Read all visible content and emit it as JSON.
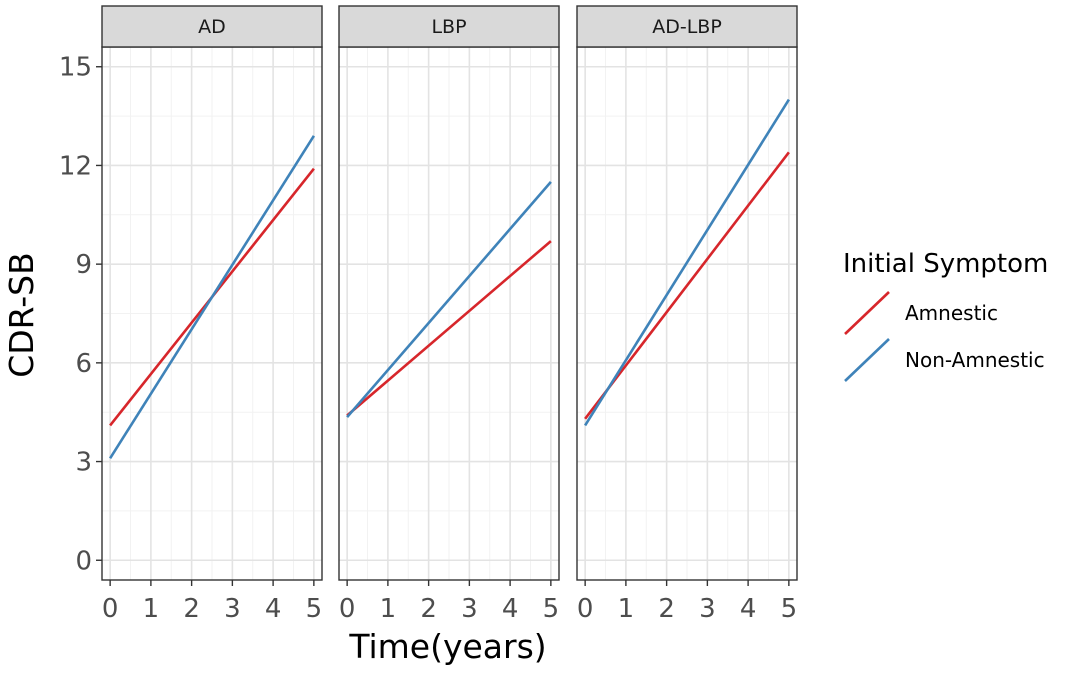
{
  "chart_data": {
    "type": "line",
    "facets": [
      "AD",
      "LBP",
      "AD-LBP"
    ],
    "xlabel": "Time(years)",
    "ylabel": "CDR-SB",
    "x_ticks": [
      0,
      1,
      2,
      3,
      4,
      5
    ],
    "y_ticks": [
      0,
      3,
      6,
      9,
      12,
      15
    ],
    "xlim": [
      -0.2,
      5.2
    ],
    "ylim": [
      -0.6,
      15.6
    ],
    "grid": true,
    "legend": {
      "title": "Initial Symptom",
      "position": "right",
      "entries": [
        {
          "label": "Amnestic",
          "color": "#d7262b"
        },
        {
          "label": "Non-Amnestic",
          "color": "#3f83b9"
        }
      ]
    },
    "series": [
      {
        "facet": "AD",
        "name": "Amnestic",
        "x": [
          0,
          5
        ],
        "y": [
          4.1,
          11.9
        ]
      },
      {
        "facet": "AD",
        "name": "Non-Amnestic",
        "x": [
          0,
          5
        ],
        "y": [
          3.1,
          12.9
        ]
      },
      {
        "facet": "LBP",
        "name": "Amnestic",
        "x": [
          0,
          5
        ],
        "y": [
          4.4,
          9.7
        ]
      },
      {
        "facet": "LBP",
        "name": "Non-Amnestic",
        "x": [
          0,
          5
        ],
        "y": [
          4.35,
          11.5
        ]
      },
      {
        "facet": "AD-LBP",
        "name": "Amnestic",
        "x": [
          0,
          5
        ],
        "y": [
          4.3,
          12.4
        ]
      },
      {
        "facet": "AD-LBP",
        "name": "Non-Amnestic",
        "x": [
          0,
          5
        ],
        "y": [
          4.1,
          14.0
        ]
      }
    ]
  }
}
